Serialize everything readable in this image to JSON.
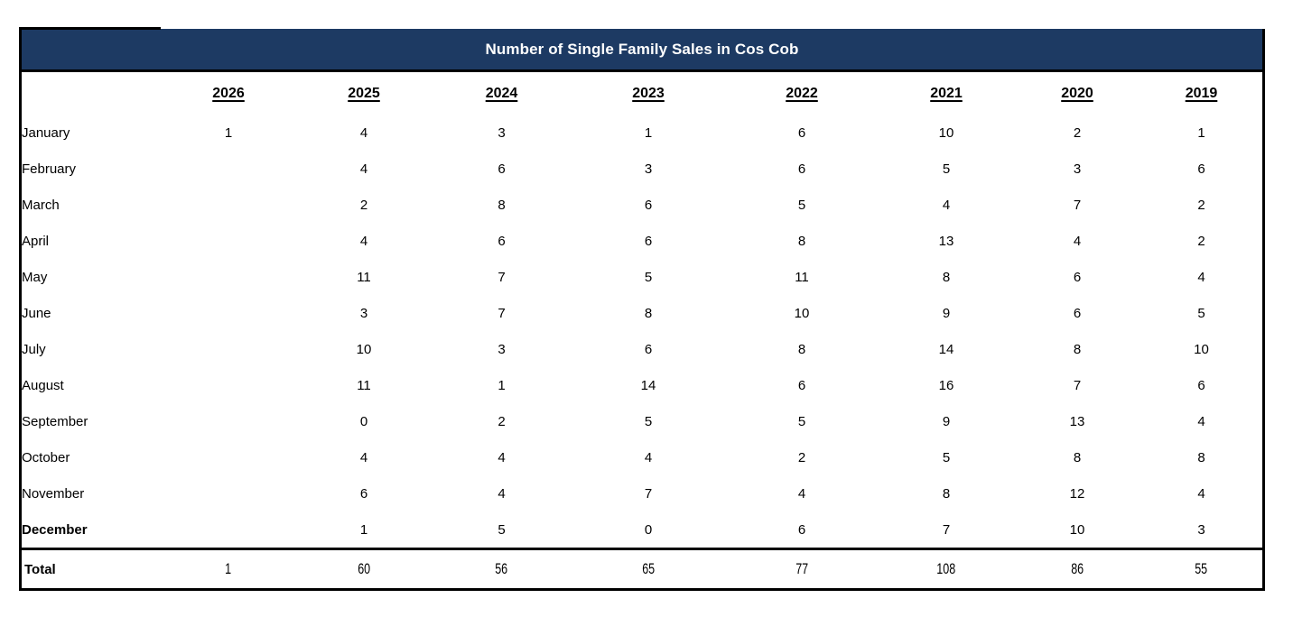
{
  "header": {
    "title": "Number of Single Family Sales in Cos Cob",
    "bg_color": "#1D3A63",
    "text_color": "#FFFFFF",
    "border_color": "#000000"
  },
  "chart_data": {
    "type": "table",
    "title": "Number of Single Family Sales in Cos Cob",
    "columns": [
      "2026",
      "2025",
      "2024",
      "2023",
      "2022",
      "2021",
      "2020",
      "2019"
    ],
    "rows": [
      {
        "label": "January",
        "values": [
          "1",
          "4",
          "3",
          "1",
          "6",
          "10",
          "2",
          "1"
        ]
      },
      {
        "label": "February",
        "values": [
          "",
          "4",
          "6",
          "3",
          "6",
          "5",
          "3",
          "6"
        ]
      },
      {
        "label": "March",
        "values": [
          "",
          "2",
          "8",
          "6",
          "5",
          "4",
          "7",
          "2"
        ]
      },
      {
        "label": "April",
        "values": [
          "",
          "4",
          "6",
          "6",
          "8",
          "13",
          "4",
          "2"
        ]
      },
      {
        "label": "May",
        "values": [
          "",
          "11",
          "7",
          "5",
          "11",
          "8",
          "6",
          "4"
        ]
      },
      {
        "label": "June",
        "values": [
          "",
          "3",
          "7",
          "8",
          "10",
          "9",
          "6",
          "5"
        ]
      },
      {
        "label": "July",
        "values": [
          "",
          "10",
          "3",
          "6",
          "8",
          "14",
          "8",
          "10"
        ]
      },
      {
        "label": "August",
        "values": [
          "",
          "11",
          "1",
          "14",
          "6",
          "16",
          "7",
          "6"
        ]
      },
      {
        "label": "September",
        "values": [
          "",
          "0",
          "2",
          "5",
          "5",
          "9",
          "13",
          "4"
        ]
      },
      {
        "label": "October",
        "values": [
          "",
          "4",
          "4",
          "4",
          "2",
          "5",
          "8",
          "8"
        ]
      },
      {
        "label": "November",
        "values": [
          "",
          "6",
          "4",
          "7",
          "4",
          "8",
          "12",
          "4"
        ]
      },
      {
        "label": "December",
        "values": [
          "",
          "1",
          "5",
          "0",
          "6",
          "7",
          "10",
          "3"
        ]
      }
    ],
    "total": {
      "label": "Total",
      "values": [
        "1",
        "60",
        "56",
        "65",
        "77",
        "108",
        "86",
        "55"
      ]
    }
  }
}
